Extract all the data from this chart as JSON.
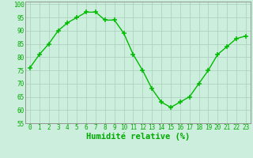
{
  "x": [
    0,
    1,
    2,
    3,
    4,
    5,
    6,
    7,
    8,
    9,
    10,
    11,
    12,
    13,
    14,
    15,
    16,
    17,
    18,
    19,
    20,
    21,
    22,
    23
  ],
  "y": [
    76,
    81,
    85,
    90,
    93,
    95,
    97,
    97,
    94,
    94,
    89,
    81,
    75,
    68,
    63,
    61,
    63,
    65,
    70,
    75,
    81,
    84,
    87,
    88
  ],
  "line_color": "#00bb00",
  "marker_color": "#00bb00",
  "bg_color": "#cceedd",
  "grid_color": "#aaccbb",
  "xlabel": "Humidité relative (%)",
  "xlabel_color": "#00aa00",
  "ylim": [
    55,
    101
  ],
  "yticks": [
    55,
    60,
    65,
    70,
    75,
    80,
    85,
    90,
    95,
    100
  ],
  "xticks": [
    0,
    1,
    2,
    3,
    4,
    5,
    6,
    7,
    8,
    9,
    10,
    11,
    12,
    13,
    14,
    15,
    16,
    17,
    18,
    19,
    20,
    21,
    22,
    23
  ],
  "tick_label_color": "#00aa00",
  "axis_color": "#888888",
  "tick_fontsize": 5.5,
  "xlabel_fontsize": 7.5
}
